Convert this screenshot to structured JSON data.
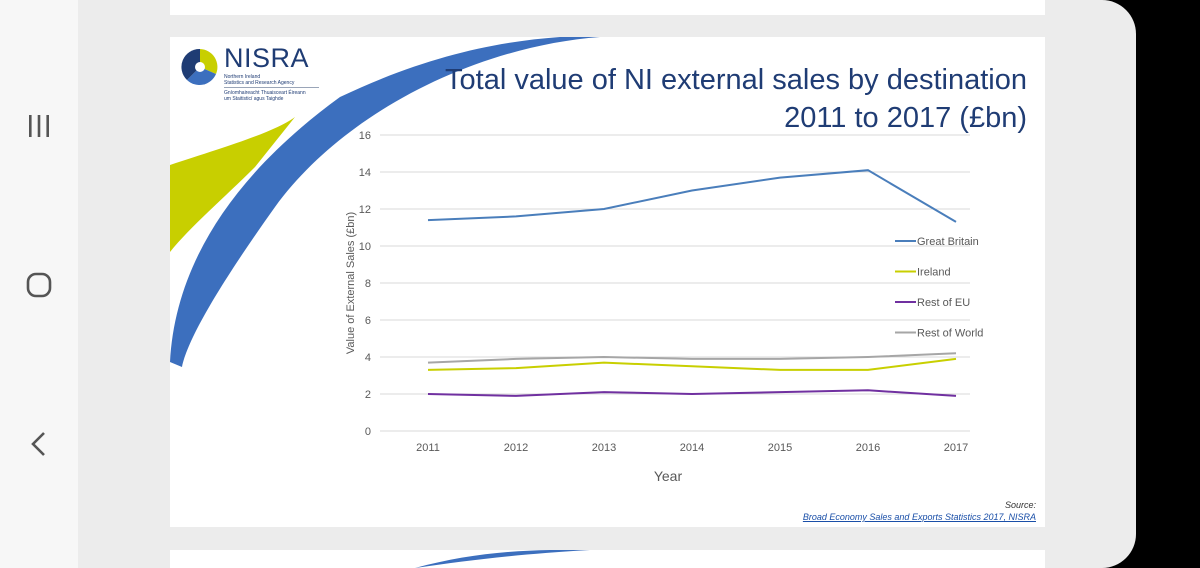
{
  "logo": {
    "name": "NISRA",
    "line1": "Northern Ireland",
    "line2": "Statistics and Research Agency",
    "line3": "Gníomhaireacht Thuaisceart Éireann",
    "line4": "um Staitisticí agus Taighde"
  },
  "source": {
    "label": "Source:",
    "link_text": "Broad Economy Sales and Exports Statistics 2017, NISRA"
  },
  "colors": {
    "great_britain": "#4a7ebb",
    "ireland": "#c8cf00",
    "rest_of_eu": "#7030a0",
    "rest_of_world": "#a6a6a6",
    "title": "#1f3c74"
  },
  "chart_data": {
    "type": "line",
    "title_line1": "Total value of NI external sales by destination",
    "title_line2": "2011 to 2017 (£bn)",
    "xlabel": "Year",
    "ylabel": "Value of External Sales (£bn)",
    "ylim": [
      0,
      16
    ],
    "yticks": [
      0,
      2,
      4,
      6,
      8,
      10,
      12,
      14,
      16
    ],
    "grid": true,
    "legend_position": "right",
    "categories": [
      "2011",
      "2012",
      "2013",
      "2014",
      "2015",
      "2016",
      "2017"
    ],
    "series": [
      {
        "name": "Great Britain",
        "color": "#4a7ebb",
        "values": [
          11.4,
          11.6,
          12.0,
          13.0,
          13.7,
          14.1,
          11.3
        ]
      },
      {
        "name": "Ireland",
        "color": "#c8cf00",
        "values": [
          3.3,
          3.4,
          3.7,
          3.5,
          3.3,
          3.3,
          3.9
        ]
      },
      {
        "name": "Rest of EU",
        "color": "#7030a0",
        "values": [
          2.0,
          1.9,
          2.1,
          2.0,
          2.1,
          2.2,
          1.9
        ]
      },
      {
        "name": "Rest of World",
        "color": "#a6a6a6",
        "values": [
          3.7,
          3.9,
          4.0,
          3.9,
          3.9,
          4.0,
          4.2
        ]
      }
    ]
  }
}
